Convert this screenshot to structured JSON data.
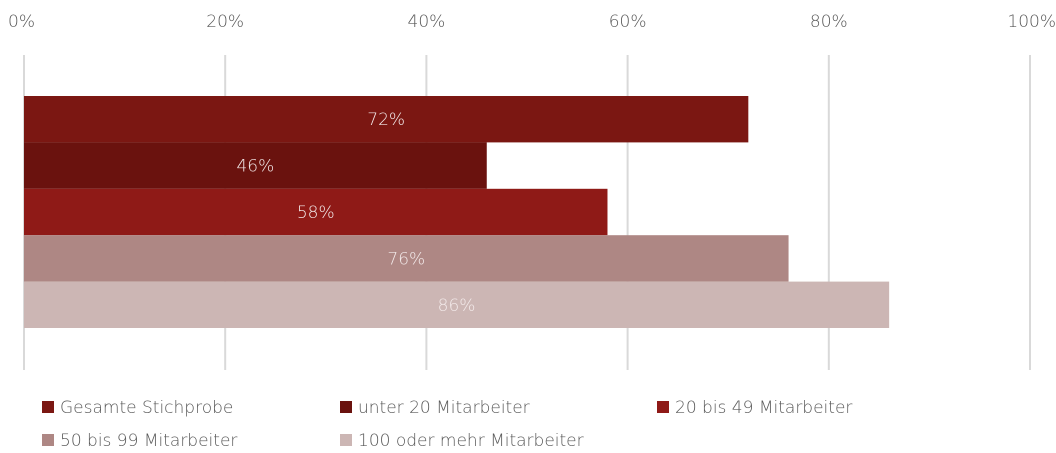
{
  "chart_data": {
    "type": "bar",
    "orientation": "horizontal",
    "categories": [
      null
    ],
    "series": [
      {
        "name": "Gesamte Stichprobe",
        "color": "#7b1712",
        "values": [
          72
        ],
        "value_labels": [
          "72%"
        ]
      },
      {
        "name": "unter 20 Mitarbeiter",
        "color": "#6a120e",
        "values": [
          46
        ],
        "value_labels": [
          "46%"
        ]
      },
      {
        "name": "20 bis 49 Mitarbeiter",
        "color": "#8f1a17",
        "values": [
          58
        ],
        "value_labels": [
          "58%"
        ]
      },
      {
        "name": "50 bis 99 Mitarbeiter",
        "color": "#ae8784",
        "values": [
          76
        ],
        "value_labels": [
          "76%"
        ]
      },
      {
        "name": "100 oder mehr Mitarbeiter",
        "color": "#ccb6b4",
        "values": [
          86
        ],
        "value_labels": [
          "86%"
        ]
      }
    ],
    "xlim": [
      0,
      100
    ],
    "xticks": [
      {
        "value": 0,
        "label": "0%"
      },
      {
        "value": 20,
        "label": "20%"
      },
      {
        "value": 40,
        "label": "40%"
      },
      {
        "value": 60,
        "label": "60%"
      },
      {
        "value": 80,
        "label": "80%"
      },
      {
        "value": 100,
        "label": "100%"
      }
    ],
    "grid": true,
    "legend": "bottom"
  }
}
